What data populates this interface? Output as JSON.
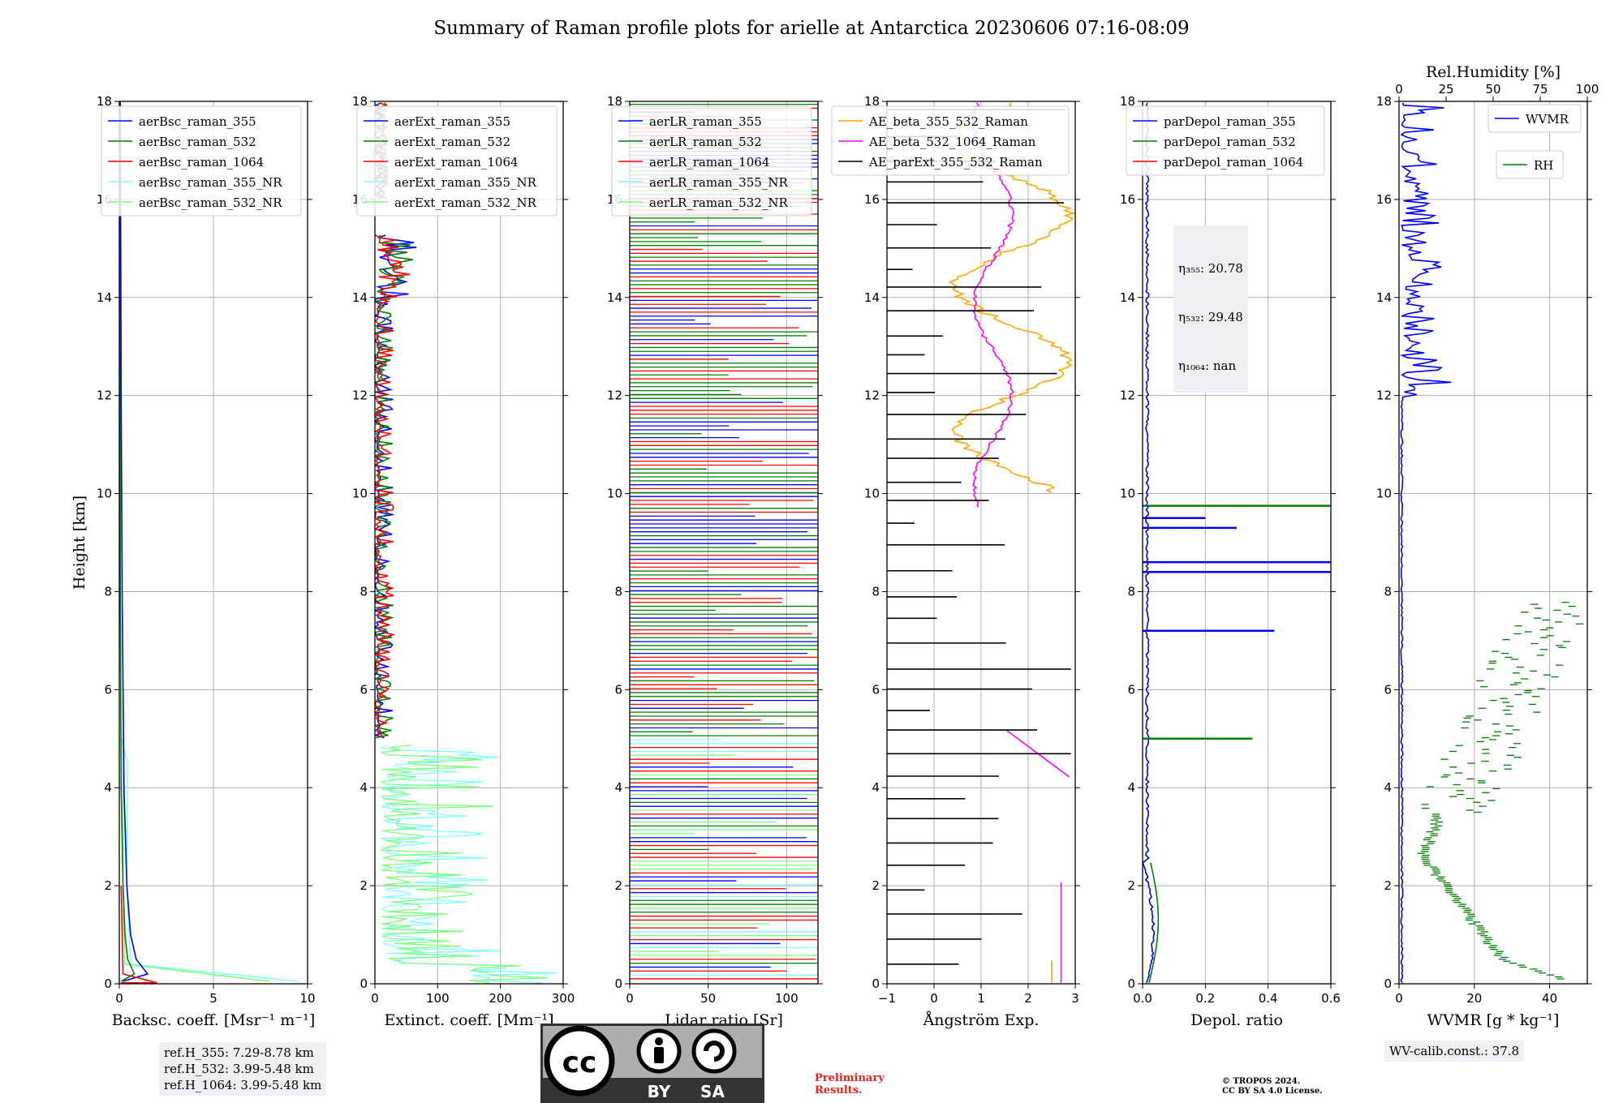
{
  "title": "Summary of Raman profile plots for arielle at Antarctica 20230606 07:16-08:09",
  "y_axis": {
    "label": "Height [km]",
    "ticks": [
      "0",
      "2",
      "4",
      "6",
      "8",
      "10",
      "12",
      "14",
      "16",
      "18"
    ],
    "range": [
      0,
      18
    ]
  },
  "panels": [
    {
      "id": "bsc",
      "xlabel": "Backsc. coeff. [Msr$^{-1}$ m$^{-1}$]",
      "xlabel_display": "Backsc. coeff. [Msr⁻¹ m⁻¹]",
      "xticks": [
        "0",
        "5",
        "10"
      ],
      "xrange": [
        0,
        10
      ],
      "legend_placement": "top-right",
      "legend": [
        {
          "name": "aerBsc_raman_355",
          "color": "#0000ff"
        },
        {
          "name": "aerBsc_raman_532",
          "color": "#008000"
        },
        {
          "name": "aerBsc_raman_1064",
          "color": "#ff0000"
        },
        {
          "name": "aerBsc_raman_355_NR",
          "color": "#7fffff"
        },
        {
          "name": "aerBsc_raman_532_NR",
          "color": "#7fff7f"
        }
      ]
    },
    {
      "id": "ext",
      "xlabel_display": "Extinct. coeff. [Mm⁻¹]",
      "xticks": [
        "0",
        "100",
        "200",
        "300"
      ],
      "xrange": [
        0,
        300
      ],
      "legend_placement": "top-right",
      "legend": [
        {
          "name": "aerExt_raman_355",
          "color": "#0000ff"
        },
        {
          "name": "aerExt_raman_532",
          "color": "#008000"
        },
        {
          "name": "aerExt_raman_1064",
          "color": "#ff0000"
        },
        {
          "name": "aerExt_raman_355_NR",
          "color": "#7fffff"
        },
        {
          "name": "aerExt_raman_532_NR",
          "color": "#7fff7f"
        }
      ]
    },
    {
      "id": "lr",
      "xlabel_display": "Lidar ratio [Sr]",
      "xticks": [
        "0",
        "50",
        "100"
      ],
      "xrange": [
        0,
        120
      ],
      "legend_placement": "top-right",
      "legend": [
        {
          "name": "aerLR_raman_355",
          "color": "#0000ff"
        },
        {
          "name": "aerLR_raman_532",
          "color": "#008000"
        },
        {
          "name": "aerLR_raman_1064",
          "color": "#ff0000"
        },
        {
          "name": "aerLR_raman_355_NR",
          "color": "#7fffff"
        },
        {
          "name": "aerLR_raman_532_NR",
          "color": "#7fff7f"
        }
      ]
    },
    {
      "id": "ae",
      "xlabel_display": "Ångström Exp.",
      "xticks": [
        "−1",
        "0",
        "1",
        "2",
        "3"
      ],
      "xrange": [
        -1,
        3
      ],
      "legend_placement": "top-right",
      "legend": [
        {
          "name": "AE_beta_355_532_Raman",
          "color": "#ffa500"
        },
        {
          "name": "AE_beta_532_1064_Raman",
          "color": "#ff00ff"
        },
        {
          "name": "AE_parExt_355_532_Raman",
          "color": "#000000"
        }
      ]
    },
    {
      "id": "dep",
      "xlabel_display": "Depol. ratio",
      "xticks": [
        "0.0",
        "0.2",
        "0.4",
        "0.6"
      ],
      "xrange": [
        0,
        0.6
      ],
      "legend_placement": "top-right",
      "legend": [
        {
          "name": "parDepol_raman_355",
          "color": "#0000ff"
        },
        {
          "name": "parDepol_raman_532",
          "color": "#008000"
        },
        {
          "name": "parDepol_raman_1064",
          "color": "#ff0000"
        }
      ]
    },
    {
      "id": "wv",
      "xlabel_display": "WVMR [g * kg⁻¹]",
      "xticks": [
        "0",
        "20",
        "40"
      ],
      "xrange": [
        0,
        50
      ],
      "top_axis": {
        "label": "Rel.Humidity [%]",
        "ticks": [
          "0",
          "25",
          "50",
          "75",
          "100"
        ],
        "range": [
          0,
          100
        ]
      },
      "legend": [
        {
          "name": "WVMR",
          "color": "#0000ff"
        },
        {
          "name": "RH",
          "color": "#008000"
        }
      ]
    }
  ],
  "eta": {
    "l355": "η₃₅₅: 20.78",
    "l532": "η₅₃₂: 29.48",
    "l1064": "η₁₀₆₄: nan"
  },
  "refh": "ref.H_355: 7.29-8.78 km\nref.H_532: 3.99-5.48 km\nref.H_1064: 3.99-5.48 km",
  "wv_calib": "WV-calib.const.: 37.8",
  "license_badge": {
    "top": "cc",
    "bottom_left": "BY",
    "bottom_right": "SA"
  },
  "preliminary": "Preliminary\nResults.",
  "copyright": "© TROPOS 2024.\nCC BY SA 4.0 License.",
  "chart_data": {
    "type": "line",
    "y": "height_km",
    "profiles": {
      "aerBsc_raman_355": [
        [
          0.2,
          0.05
        ],
        [
          1.5,
          0.2
        ],
        [
          0.9,
          0.5
        ],
        [
          0.6,
          1.0
        ],
        [
          0.4,
          2.0
        ],
        [
          0.25,
          4.0
        ],
        [
          0.15,
          8.0
        ],
        [
          0.1,
          12.0
        ],
        [
          0.05,
          18.0
        ]
      ],
      "aerBsc_raman_532": [
        [
          0.1,
          0.05
        ],
        [
          0.8,
          0.2
        ],
        [
          0.45,
          0.5
        ],
        [
          0.3,
          1.0
        ],
        [
          0.2,
          2.0
        ],
        [
          0.1,
          4.0
        ],
        [
          0.05,
          8.0
        ],
        [
          0.03,
          18.0
        ]
      ],
      "aerBsc_raman_355_NR": [
        [
          9.5,
          0.05
        ],
        [
          0.6,
          0.4
        ],
        [
          0.4,
          2.0
        ],
        [
          0.45,
          4.5
        ],
        [
          0.1,
          5.0
        ]
      ],
      "aerBsc_raman_532_NR": [
        [
          8.0,
          0.05
        ],
        [
          0.3,
          0.4
        ],
        [
          0.2,
          2.0
        ],
        [
          0.2,
          5.0
        ]
      ],
      "WVMR": [
        [
          0.5,
          0.0
        ],
        [
          0.6,
          1.0
        ],
        [
          0.7,
          3.0
        ],
        [
          1.0,
          6.0
        ],
        [
          3.0,
          12.0
        ],
        [
          5.0,
          16.0
        ],
        [
          8.0,
          18.0
        ]
      ],
      "RH": [
        [
          90,
          0.2
        ],
        [
          55,
          0.6
        ],
        [
          45,
          1.2
        ],
        [
          30,
          2.0
        ],
        [
          12,
          2.7
        ],
        [
          20,
          4.0
        ],
        [
          35,
          5.5
        ],
        [
          60,
          6.5
        ],
        [
          70,
          7.5
        ],
        [
          80,
          7.8
        ]
      ]
    }
  }
}
